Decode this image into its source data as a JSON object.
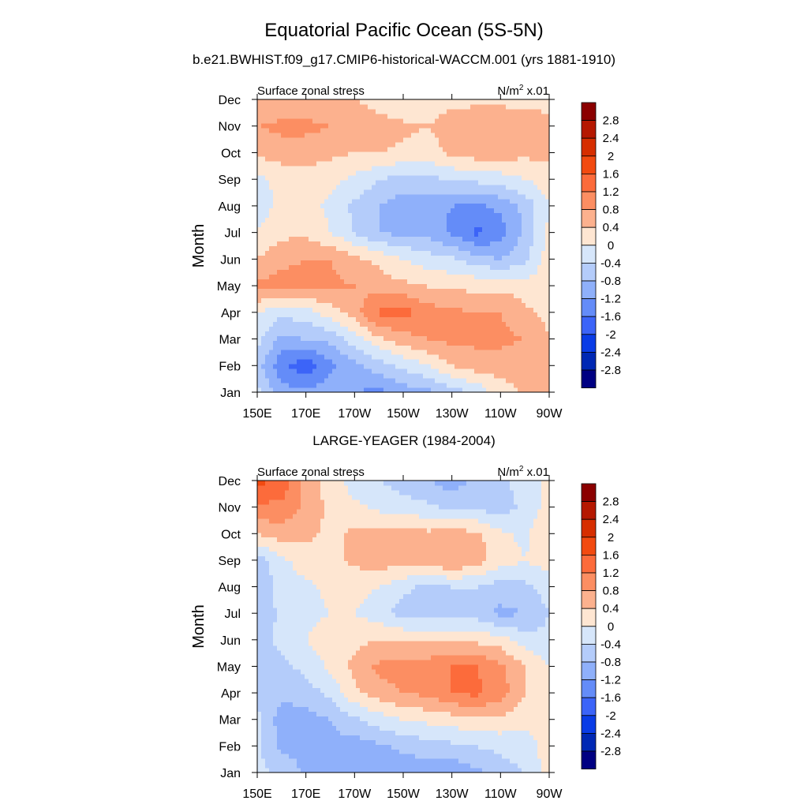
{
  "figure": {
    "title": "Equatorial Pacific Ocean (5S-5N)"
  },
  "colorbar": {
    "labels": [
      "2.8",
      "2.4",
      "2",
      "1.6",
      "1.2",
      "0.8",
      "0.4",
      "0",
      "-0.4",
      "-0.8",
      "-1.2",
      "-1.6",
      "-2",
      "-2.4",
      "-2.8"
    ],
    "colors": [
      "#8b0000",
      "#b51800",
      "#d62e00",
      "#f24a10",
      "#fc6b3b",
      "#fc8e62",
      "#fcb18e",
      "#fee6d2",
      "#d6e6fa",
      "#b4ccfa",
      "#8fb0fa",
      "#648cf8",
      "#3c64f8",
      "#0a3ce6",
      "#0028b4",
      "#000082"
    ]
  },
  "chart_data": [
    {
      "type": "heatmap",
      "title": "b.e21.BWHIST.f09_g17.CMIP6-historical-WACCM.001 (yrs 1881-1910)",
      "left_label": "Surface zonal stress",
      "units_base": "N/m",
      "units_sup": "2",
      "units_tail": " x.01",
      "ylabel": "Month",
      "xticks": [
        "150E",
        "170E",
        "170W",
        "150W",
        "130W",
        "110W",
        "90W"
      ],
      "yticks": [
        "Jan",
        "Feb",
        "Mar",
        "Apr",
        "May",
        "Jun",
        "Jul",
        "Aug",
        "Sep",
        "Oct",
        "Nov",
        "Dec"
      ],
      "x_longitude_east": [
        150,
        160,
        170,
        180,
        190,
        200,
        210,
        220,
        230,
        240,
        250,
        260,
        270
      ],
      "grid": false,
      "z": [
        [
          -0.3,
          -1.0,
          -1.1,
          -1.0,
          -1.2,
          -1.3,
          -1.0,
          -0.9,
          -0.6,
          -0.3,
          0.2,
          0.5,
          0.4
        ],
        [
          -0.6,
          -1.5,
          -1.9,
          -1.3,
          -0.9,
          -0.6,
          -0.3,
          0.0,
          0.4,
          0.6,
          0.6,
          0.5,
          0.4
        ],
        [
          -0.3,
          -0.9,
          -0.8,
          -0.7,
          -0.2,
          0.3,
          0.6,
          0.8,
          0.9,
          0.9,
          0.9,
          0.8,
          0.4
        ],
        [
          0.0,
          -0.3,
          -0.2,
          0.2,
          0.6,
          1.3,
          1.4,
          1.0,
          0.9,
          0.8,
          0.8,
          0.5,
          0.3
        ],
        [
          0.9,
          1.0,
          0.9,
          0.9,
          0.8,
          0.6,
          0.5,
          0.4,
          0.3,
          0.3,
          0.3,
          0.2,
          0.2
        ],
        [
          0.4,
          0.7,
          0.8,
          0.8,
          0.5,
          0.3,
          0.0,
          -0.2,
          -0.3,
          -0.6,
          -0.8,
          -0.5,
          0.2
        ],
        [
          0.0,
          0.3,
          0.3,
          0.0,
          -0.4,
          -0.8,
          -0.9,
          -0.9,
          -1.3,
          -1.7,
          -1.4,
          -0.7,
          0.1
        ],
        [
          -0.2,
          0.1,
          0.2,
          -0.1,
          -0.5,
          -0.8,
          -1.0,
          -1.1,
          -1.2,
          -1.3,
          -1.1,
          -0.7,
          0.0
        ],
        [
          -0.1,
          0.1,
          0.2,
          0.1,
          -0.1,
          -0.4,
          -0.6,
          -0.5,
          -0.4,
          -0.3,
          -0.2,
          0.0,
          0.2
        ],
        [
          0.5,
          0.6,
          0.6,
          0.5,
          0.4,
          0.4,
          0.3,
          0.2,
          0.5,
          0.6,
          0.6,
          0.5,
          0.5
        ],
        [
          0.8,
          0.9,
          0.9,
          0.8,
          0.7,
          0.6,
          0.5,
          0.4,
          0.6,
          0.7,
          0.7,
          0.6,
          0.5
        ],
        [
          0.4,
          0.5,
          0.5,
          0.4,
          0.4,
          0.2,
          0.0,
          0.2,
          0.3,
          0.3,
          0.3,
          0.3,
          0.3
        ]
      ]
    },
    {
      "type": "heatmap",
      "title": "LARGE-YEAGER (1984-2004)",
      "left_label": "Surface zonal stress",
      "units_base": "N/m",
      "units_sup": "2",
      "units_tail": " x.01",
      "ylabel": "Month",
      "xticks": [
        "150E",
        "170E",
        "170W",
        "150W",
        "130W",
        "110W",
        "90W"
      ],
      "yticks": [
        "Jan",
        "Feb",
        "Mar",
        "Apr",
        "May",
        "Jun",
        "Jul",
        "Aug",
        "Sep",
        "Oct",
        "Nov",
        "Dec"
      ],
      "x_longitude_east": [
        150,
        160,
        170,
        180,
        190,
        200,
        210,
        220,
        230,
        240,
        250,
        260,
        270
      ],
      "grid": false,
      "z": [
        [
          -0.3,
          -0.5,
          -0.9,
          -0.9,
          -1.0,
          -1.1,
          -1.0,
          -1.1,
          -1.1,
          -0.9,
          -0.6,
          -0.4,
          0.2
        ],
        [
          -0.3,
          -0.9,
          -0.9,
          -0.9,
          -1.0,
          -0.9,
          -0.7,
          -0.6,
          -0.5,
          -0.4,
          -0.3,
          -0.2,
          0.2
        ],
        [
          -0.3,
          -1.0,
          -1.0,
          -0.8,
          -0.5,
          -0.2,
          0.0,
          0.1,
          0.2,
          0.3,
          0.3,
          0.1,
          0.2
        ],
        [
          -0.5,
          -0.7,
          -0.6,
          -0.3,
          0.3,
          0.6,
          0.8,
          0.9,
          1.2,
          1.3,
          1.0,
          0.4,
          0.1
        ],
        [
          -0.6,
          -0.5,
          -0.3,
          0.1,
          0.5,
          0.9,
          1.0,
          1.0,
          1.2,
          1.2,
          0.9,
          0.4,
          0.0
        ],
        [
          -0.6,
          -0.3,
          0.0,
          0.2,
          0.3,
          0.4,
          0.4,
          0.4,
          0.3,
          0.3,
          0.2,
          -0.2,
          -0.3
        ],
        [
          -0.7,
          -0.3,
          -0.1,
          0.0,
          0.0,
          -0.2,
          -0.6,
          -0.6,
          -0.5,
          -0.6,
          -0.9,
          -0.8,
          -0.4
        ],
        [
          -0.8,
          -0.2,
          -0.1,
          0.1,
          0.1,
          0.0,
          -0.3,
          -0.5,
          -0.4,
          -0.4,
          -0.6,
          -0.5,
          -0.2
        ],
        [
          -0.6,
          -0.1,
          0.2,
          0.3,
          0.5,
          0.6,
          0.6,
          0.6,
          0.8,
          0.6,
          0.2,
          0.0,
          0.2
        ],
        [
          0.4,
          0.6,
          0.5,
          0.3,
          0.5,
          0.6,
          0.6,
          0.5,
          0.6,
          0.5,
          0.1,
          -0.1,
          0.4
        ],
        [
          1.1,
          1.1,
          0.7,
          0.3,
          0.1,
          -0.1,
          -0.2,
          -0.3,
          -0.5,
          -0.5,
          -0.6,
          -0.3,
          0.2
        ],
        [
          1.7,
          1.5,
          0.6,
          0.2,
          -0.2,
          -0.4,
          -0.6,
          -0.8,
          -1.0,
          -0.7,
          -0.5,
          -0.2,
          0.1
        ]
      ]
    }
  ]
}
